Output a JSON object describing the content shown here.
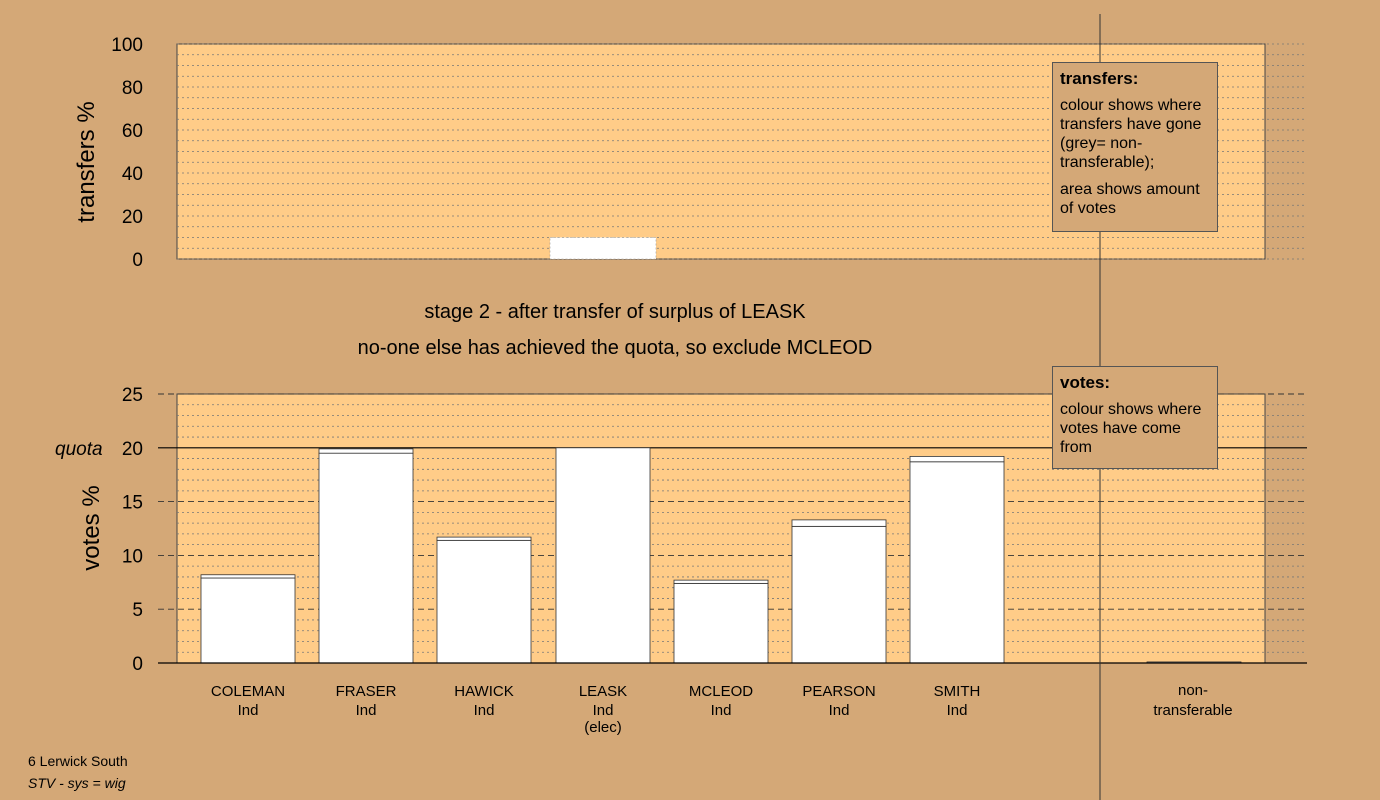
{
  "footer": {
    "line1": "6 Lerwick South",
    "line2": "STV - sys = wig"
  },
  "messages": {
    "stage": "stage 2 - after transfer of surplus of LEASK",
    "action": "no-one else has achieved the quota, so exclude MCLEOD"
  },
  "legends": {
    "transfers": {
      "title": "transfers:",
      "p1": "colour shows where transfers have gone (grey= non-transferable);",
      "p2": "area shows amount of votes"
    },
    "votes": {
      "title": "votes:",
      "p1": "colour shows where votes have come from"
    }
  },
  "colors": {
    "background": "#d4a877",
    "plot": "#ffcc88",
    "bar": "#ffffff",
    "grey": "#bbbbbb"
  },
  "chart_data": [
    {
      "type": "bar",
      "ylabel": "transfers %",
      "ylim": [
        0,
        100
      ],
      "yticks": [
        "0",
        "20",
        "40",
        "60",
        "80",
        "100"
      ],
      "categories": [
        "COLEMAN",
        "FRASER",
        "HAWICK",
        "LEASK",
        "MCLEOD",
        "PEARSON",
        "SMITH",
        "non-transferable"
      ],
      "values": [
        0,
        0,
        0,
        10,
        0,
        0,
        0,
        0
      ]
    },
    {
      "type": "bar",
      "ylabel": "votes %",
      "ylim": [
        0,
        25
      ],
      "yticks": [
        "0",
        "5",
        "10",
        "15",
        "20",
        "25"
      ],
      "quota_label": "quota",
      "quota": 20,
      "candidates": [
        {
          "name": "COLEMAN",
          "party": "Ind",
          "note": "",
          "first": 7.9,
          "transfer": 0.3
        },
        {
          "name": "FRASER",
          "party": "Ind",
          "note": "",
          "first": 19.5,
          "transfer": 0.4
        },
        {
          "name": "HAWICK",
          "party": "Ind",
          "note": "",
          "first": 11.4,
          "transfer": 0.3
        },
        {
          "name": "LEASK",
          "party": "Ind",
          "note": "(elec)",
          "first": 20,
          "transfer": 0
        },
        {
          "name": "MCLEOD",
          "party": "Ind",
          "note": "",
          "first": 7.4,
          "transfer": 0.3
        },
        {
          "name": "PEARSON",
          "party": "Ind",
          "note": "",
          "first": 12.7,
          "transfer": 0.6
        },
        {
          "name": "SMITH",
          "party": "Ind",
          "note": "",
          "first": 18.7,
          "transfer": 0.5
        }
      ],
      "nontransferable": {
        "name": "non-",
        "name2": "transferable",
        "value": 0.1
      }
    }
  ]
}
